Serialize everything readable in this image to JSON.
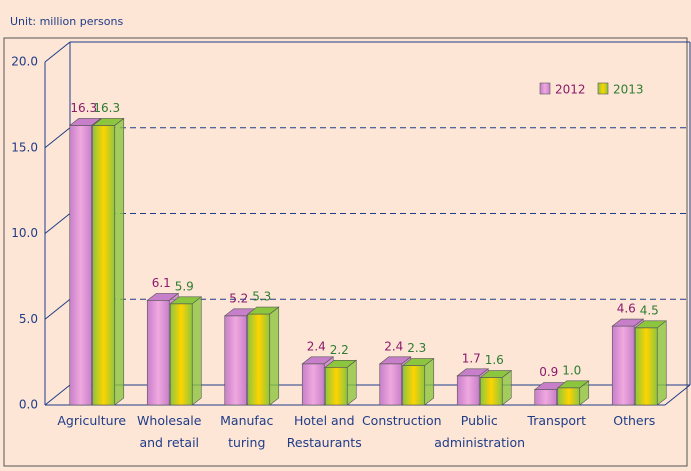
{
  "chart_data": {
    "type": "bar3d",
    "subtitle": "Unit: million persons",
    "categories": [
      "Agriculture",
      "Wholesale\nand retail",
      "Manufac\nturing",
      "Hotel and\nRestaurants",
      "Construction",
      "Public\nadministration",
      "Transport",
      "Others"
    ],
    "series": [
      {
        "name": "2012",
        "color": "#c77fc9",
        "label_color": "#8b1a6b",
        "values": [
          16.3,
          6.1,
          5.2,
          2.4,
          2.4,
          1.7,
          0.9,
          4.6
        ],
        "value_labels": [
          "16.3",
          "6.1",
          "5.2",
          "2.4",
          "2.4",
          "1.7",
          "0.9",
          "4.6"
        ]
      },
      {
        "name": "2013",
        "color": "#8cc63f",
        "label_color": "#2e7d32",
        "values": [
          16.3,
          5.9,
          5.3,
          2.2,
          2.3,
          1.6,
          1.0,
          4.5
        ],
        "value_labels": [
          "16.3",
          "5.9",
          "5.3",
          "2.2",
          "2.3",
          "1.6",
          "1.0",
          "4.5"
        ]
      }
    ],
    "ylim": [
      0,
      20
    ],
    "yticks": [
      {
        "value": 0,
        "label": "0.0"
      },
      {
        "value": 5,
        "label": "5.0"
      },
      {
        "value": 10,
        "label": "10.0"
      },
      {
        "value": 15,
        "label": "15.0"
      },
      {
        "value": 20,
        "label": "20.0"
      }
    ],
    "grid": true,
    "legend": "top-right"
  }
}
